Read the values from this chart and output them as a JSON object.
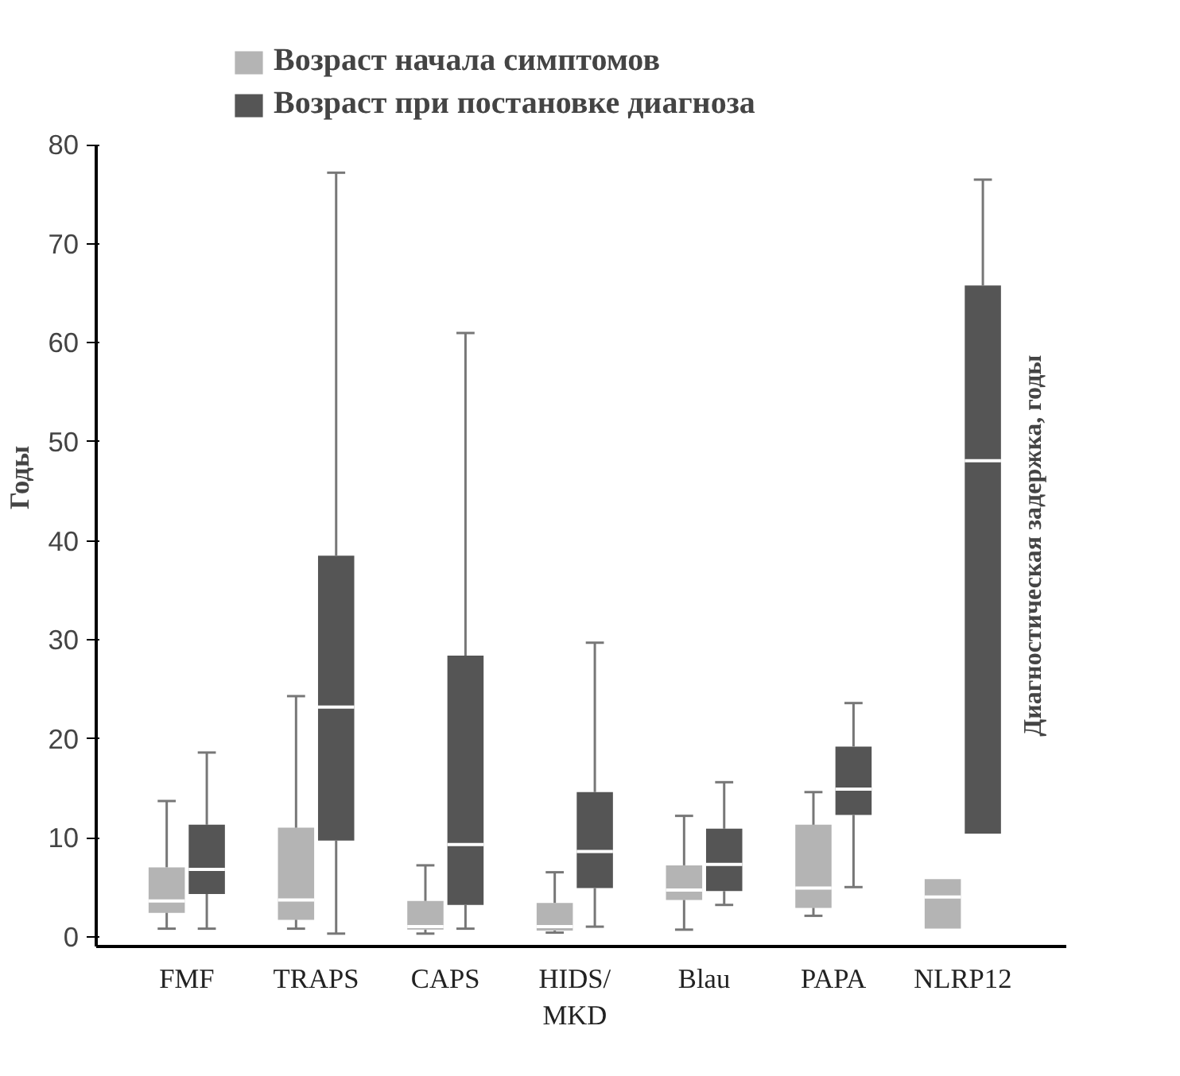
{
  "chart_data": {
    "type": "box",
    "ylabel": "Годы",
    "categories": [
      "FMF",
      "TRAPS",
      "CAPS",
      "HIDS/\nMKD",
      "Blau",
      "PAPA",
      "NLRP12"
    ],
    "ylim": [
      -1,
      80
    ],
    "yticks": [
      0,
      10,
      20,
      30,
      40,
      50,
      60,
      70,
      80
    ],
    "grid": false,
    "legend": "top left",
    "annotations": [
      "Диагностическая задержка, годы"
    ],
    "series": [
      {
        "name": "Возраст начала симптомов",
        "color": "#b4b4b4",
        "boxes": [
          {
            "low": 0.8,
            "q1": 2.4,
            "median": 3.6,
            "q3": 7,
            "high": 13.7
          },
          {
            "low": 0.8,
            "q1": 1.7,
            "median": 3.7,
            "q3": 11,
            "high": 24.3
          },
          {
            "low": 0.3,
            "q1": 0.7,
            "median": 1,
            "q3": 3.6,
            "high": 7.2
          },
          {
            "low": 0.4,
            "q1": 0.6,
            "median": 1,
            "q3": 3.4,
            "high": 6.5
          },
          {
            "low": 0.7,
            "q1": 3.7,
            "median": 4.7,
            "q3": 7.2,
            "high": 12.2
          },
          {
            "low": 2.1,
            "q1": 2.9,
            "median": 4.9,
            "q3": 11.3,
            "high": 14.6
          },
          {
            "low": 0.8,
            "q1": 0.8,
            "median": 4,
            "q3": 5.8,
            "high": 5.8
          }
        ]
      },
      {
        "name": "Возраст при постановке диагноза",
        "color": "#555555",
        "boxes": [
          {
            "low": 0.8,
            "q1": 4.3,
            "median": 6.8,
            "q3": 11.3,
            "high": 18.6
          },
          {
            "low": 0.3,
            "q1": 9.7,
            "median": 23.2,
            "q3": 38.5,
            "high": 77.2
          },
          {
            "low": 0.8,
            "q1": 3.2,
            "median": 9.3,
            "q3": 28.4,
            "high": 61
          },
          {
            "low": 1,
            "q1": 4.9,
            "median": 8.6,
            "q3": 14.6,
            "high": 29.7
          },
          {
            "low": 3.2,
            "q1": 4.6,
            "median": 7.3,
            "q3": 10.9,
            "high": 15.6
          },
          {
            "low": 5,
            "q1": 12.3,
            "median": 14.9,
            "q3": 19.2,
            "high": 23.6
          },
          {
            "low": 10.4,
            "q1": 10.4,
            "median": 48.1,
            "q3": 65.8,
            "high": 76.5
          }
        ]
      }
    ]
  }
}
